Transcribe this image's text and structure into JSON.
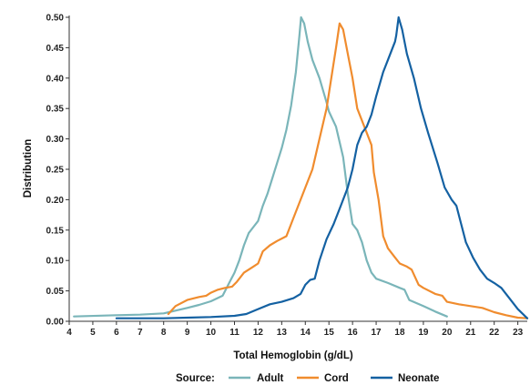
{
  "chart_data": {
    "type": "line",
    "xlabel": "Total Hemoglobin (g/dL)",
    "ylabel": "Distribution",
    "xlim": [
      4,
      23.4
    ],
    "ylim": [
      0,
      0.5
    ],
    "x_ticks": [
      4,
      5,
      6,
      7,
      8,
      9,
      10,
      11,
      12,
      13,
      14,
      15,
      16,
      17,
      18,
      19,
      20,
      21,
      22,
      23
    ],
    "y_ticks": [
      "0.00",
      "0.05",
      "0.10",
      "0.15",
      "0.20",
      "0.25",
      "0.30",
      "0.35",
      "0.40",
      "0.45",
      "0.50"
    ],
    "grid": false,
    "legend": {
      "title": "Source:",
      "position": "bottom"
    },
    "series": [
      {
        "name": "Adult",
        "color": "#7ab5b9",
        "points": [
          [
            4.2,
            0.008
          ],
          [
            6,
            0.01
          ],
          [
            7,
            0.011
          ],
          [
            8,
            0.013
          ],
          [
            9,
            0.022
          ],
          [
            9.5,
            0.027
          ],
          [
            10,
            0.033
          ],
          [
            10.5,
            0.042
          ],
          [
            10.8,
            0.065
          ],
          [
            11,
            0.08
          ],
          [
            11.2,
            0.1
          ],
          [
            11.4,
            0.125
          ],
          [
            11.6,
            0.145
          ],
          [
            11.8,
            0.155
          ],
          [
            12,
            0.165
          ],
          [
            12.2,
            0.19
          ],
          [
            12.4,
            0.21
          ],
          [
            12.6,
            0.235
          ],
          [
            12.8,
            0.26
          ],
          [
            13,
            0.285
          ],
          [
            13.2,
            0.315
          ],
          [
            13.4,
            0.355
          ],
          [
            13.6,
            0.41
          ],
          [
            13.75,
            0.47
          ],
          [
            13.82,
            0.5
          ],
          [
            13.95,
            0.49
          ],
          [
            14.1,
            0.46
          ],
          [
            14.3,
            0.43
          ],
          [
            14.6,
            0.4
          ],
          [
            14.9,
            0.36
          ],
          [
            15,
            0.345
          ],
          [
            15.3,
            0.32
          ],
          [
            15.6,
            0.27
          ],
          [
            15.8,
            0.21
          ],
          [
            16,
            0.16
          ],
          [
            16.2,
            0.15
          ],
          [
            16.4,
            0.13
          ],
          [
            16.6,
            0.1
          ],
          [
            16.8,
            0.08
          ],
          [
            17,
            0.07
          ],
          [
            17.5,
            0.063
          ],
          [
            18,
            0.055
          ],
          [
            18.2,
            0.052
          ],
          [
            18.4,
            0.035
          ],
          [
            19,
            0.025
          ],
          [
            19.5,
            0.016
          ],
          [
            20,
            0.008
          ]
        ]
      },
      {
        "name": "Cord",
        "color": "#f08c2e",
        "points": [
          [
            8.2,
            0.012
          ],
          [
            8.5,
            0.025
          ],
          [
            9,
            0.035
          ],
          [
            9.5,
            0.04
          ],
          [
            9.8,
            0.042
          ],
          [
            10,
            0.047
          ],
          [
            10.3,
            0.052
          ],
          [
            10.6,
            0.055
          ],
          [
            10.9,
            0.057
          ],
          [
            11.1,
            0.065
          ],
          [
            11.4,
            0.08
          ],
          [
            11.8,
            0.09
          ],
          [
            12,
            0.095
          ],
          [
            12.2,
            0.115
          ],
          [
            12.5,
            0.125
          ],
          [
            12.8,
            0.132
          ],
          [
            13.2,
            0.14
          ],
          [
            13.5,
            0.17
          ],
          [
            13.8,
            0.2
          ],
          [
            14,
            0.22
          ],
          [
            14.3,
            0.25
          ],
          [
            14.6,
            0.3
          ],
          [
            14.9,
            0.35
          ],
          [
            15.1,
            0.4
          ],
          [
            15.3,
            0.45
          ],
          [
            15.45,
            0.49
          ],
          [
            15.6,
            0.48
          ],
          [
            15.8,
            0.44
          ],
          [
            16,
            0.4
          ],
          [
            16.2,
            0.35
          ],
          [
            16.5,
            0.32
          ],
          [
            16.8,
            0.29
          ],
          [
            16.9,
            0.245
          ],
          [
            17.1,
            0.2
          ],
          [
            17.3,
            0.14
          ],
          [
            17.5,
            0.12
          ],
          [
            17.8,
            0.105
          ],
          [
            18,
            0.095
          ],
          [
            18.3,
            0.09
          ],
          [
            18.5,
            0.085
          ],
          [
            18.8,
            0.06
          ],
          [
            19,
            0.055
          ],
          [
            19.5,
            0.045
          ],
          [
            19.8,
            0.042
          ],
          [
            20,
            0.032
          ],
          [
            20.5,
            0.028
          ],
          [
            21,
            0.025
          ],
          [
            21.5,
            0.022
          ],
          [
            22,
            0.015
          ],
          [
            22.5,
            0.01
          ],
          [
            23,
            0.006
          ],
          [
            23.4,
            0.005
          ]
        ]
      },
      {
        "name": "Neonate",
        "color": "#1461a2",
        "points": [
          [
            6,
            0.005
          ],
          [
            8,
            0.005
          ],
          [
            9,
            0.006
          ],
          [
            10,
            0.007
          ],
          [
            11,
            0.009
          ],
          [
            11.5,
            0.012
          ],
          [
            12,
            0.02
          ],
          [
            12.5,
            0.028
          ],
          [
            13,
            0.032
          ],
          [
            13.5,
            0.038
          ],
          [
            13.8,
            0.045
          ],
          [
            14,
            0.06
          ],
          [
            14.2,
            0.068
          ],
          [
            14.4,
            0.07
          ],
          [
            14.6,
            0.1
          ],
          [
            14.9,
            0.135
          ],
          [
            15.2,
            0.16
          ],
          [
            15.5,
            0.19
          ],
          [
            15.8,
            0.22
          ],
          [
            16,
            0.25
          ],
          [
            16.2,
            0.29
          ],
          [
            16.4,
            0.31
          ],
          [
            16.6,
            0.32
          ],
          [
            16.8,
            0.34
          ],
          [
            17,
            0.37
          ],
          [
            17.3,
            0.41
          ],
          [
            17.5,
            0.43
          ],
          [
            17.8,
            0.46
          ],
          [
            17.85,
            0.47
          ],
          [
            17.95,
            0.5
          ],
          [
            18.1,
            0.48
          ],
          [
            18.3,
            0.44
          ],
          [
            18.6,
            0.4
          ],
          [
            18.9,
            0.35
          ],
          [
            19.2,
            0.31
          ],
          [
            19.6,
            0.26
          ],
          [
            19.9,
            0.22
          ],
          [
            20.2,
            0.2
          ],
          [
            20.4,
            0.19
          ],
          [
            20.6,
            0.16
          ],
          [
            20.8,
            0.13
          ],
          [
            21.1,
            0.105
          ],
          [
            21.4,
            0.085
          ],
          [
            21.7,
            0.07
          ],
          [
            22,
            0.063
          ],
          [
            22.3,
            0.055
          ],
          [
            22.6,
            0.04
          ],
          [
            23,
            0.02
          ],
          [
            23.4,
            0.005
          ]
        ]
      }
    ]
  }
}
